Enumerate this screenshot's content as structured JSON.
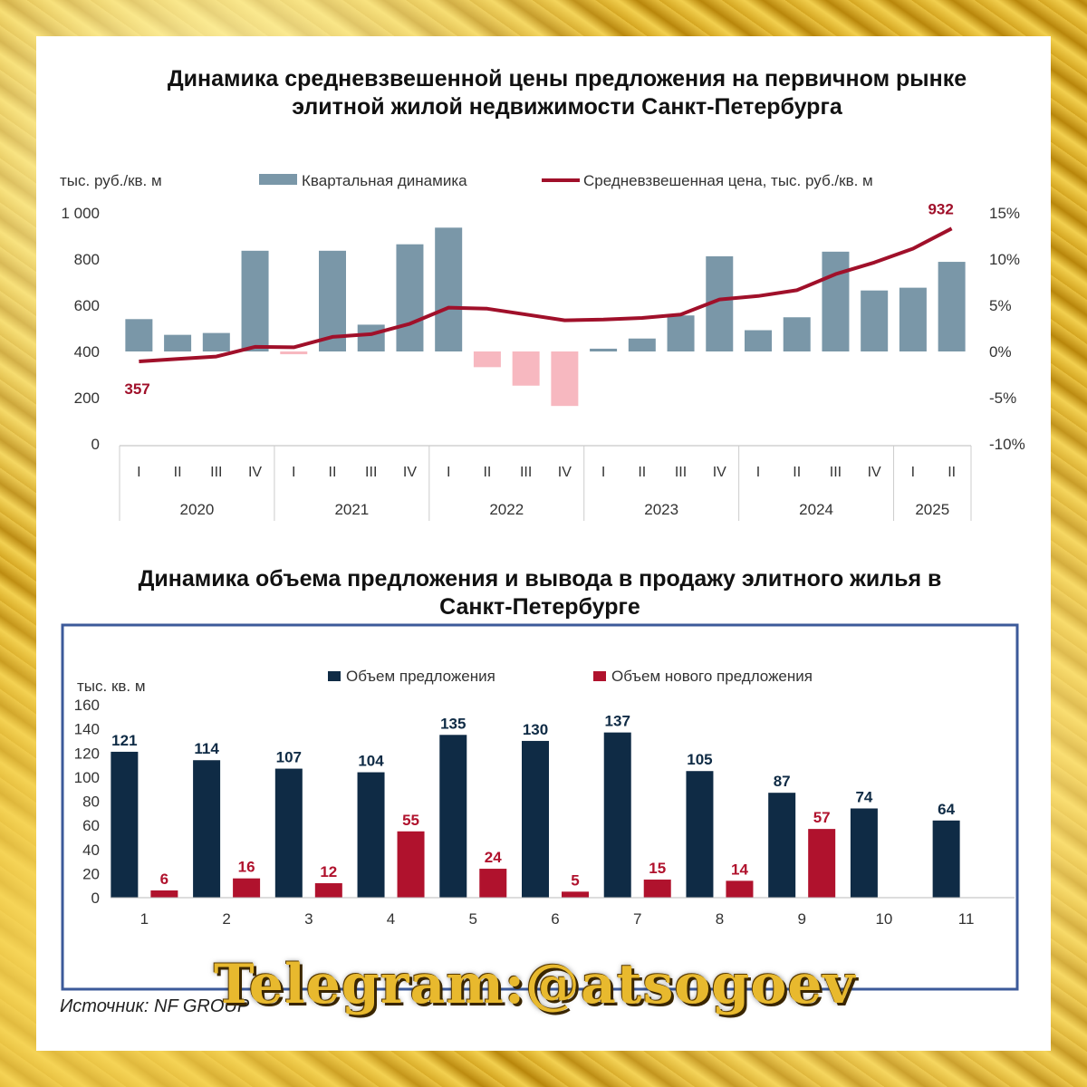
{
  "chart_data": [
    {
      "type": "bar",
      "title": "Динамика средневзвешенной цены предложения на первичном рынке элитной жилой недвижимости Санкт-Петербурга",
      "ylabel": "тыс. руб./кв. м",
      "ylim": [
        0,
        1000
      ],
      "y_ticks": [
        "1 000",
        "800",
        "600",
        "400",
        "200",
        "0"
      ],
      "y2lim": [
        -10,
        15
      ],
      "y2_ticks": [
        "15%",
        "10%",
        "5%",
        "0%",
        "-5%",
        "-10%"
      ],
      "quarters": [
        "I",
        "II",
        "III",
        "IV",
        "I",
        "II",
        "III",
        "IV",
        "I",
        "II",
        "III",
        "IV",
        "I",
        "II",
        "III",
        "IV",
        "I",
        "II",
        "III",
        "IV",
        "I",
        "II"
      ],
      "years": [
        {
          "label": "2020",
          "span": 4
        },
        {
          "label": "2021",
          "span": 4
        },
        {
          "label": "2022",
          "span": 4
        },
        {
          "label": "2023",
          "span": 4
        },
        {
          "label": "2024",
          "span": 4
        },
        {
          "label": "2025",
          "span": 2
        }
      ],
      "series": [
        {
          "name": "Квартальная динамика",
          "kind": "bar",
          "axis": "right",
          "values": [
            3.5,
            1.8,
            2.0,
            10.9,
            -0.3,
            10.9,
            2.9,
            11.6,
            13.4,
            -1.7,
            -3.7,
            -5.9,
            0.3,
            1.4,
            3.9,
            10.3,
            2.3,
            3.7,
            10.8,
            6.6,
            6.9,
            9.7
          ]
        },
        {
          "name": "Средневзвешенная цена, тыс. руб./кв. м",
          "kind": "line",
          "axis": "left",
          "values": [
            357,
            368,
            378,
            420,
            418,
            463,
            475,
            520,
            590,
            585,
            560,
            535,
            538,
            545,
            560,
            625,
            640,
            665,
            735,
            785,
            845,
            932
          ]
        }
      ],
      "point_labels": [
        {
          "index": 0,
          "text": "357"
        },
        {
          "index": 21,
          "text": "932"
        }
      ],
      "colors": {
        "bar_positive": "#7a97a8",
        "bar_negative": "#f7b8c0",
        "line": "#a0102a",
        "label": "#a0102a"
      }
    },
    {
      "type": "bar",
      "title": "Динамика объема предложения и вывода в продажу элитного жилья в Санкт-Петербурге",
      "ylabel": "тыс. кв. м",
      "ylim": [
        0,
        160
      ],
      "y_ticks": [
        "160",
        "140",
        "120",
        "100",
        "80",
        "60",
        "40",
        "20",
        "0"
      ],
      "categories": [
        "1",
        "2",
        "3",
        "4",
        "5",
        "6",
        "7",
        "8",
        "9",
        "10",
        "11"
      ],
      "series": [
        {
          "name": "Объем предложения",
          "values": [
            121,
            114,
            107,
            104,
            135,
            130,
            137,
            105,
            87,
            74,
            64
          ],
          "labels": [
            "121",
            "114",
            "107",
            "104",
            "135",
            "130",
            "137",
            "105",
            "87",
            "74",
            "64"
          ]
        },
        {
          "name": "Объем нового предложения",
          "values": [
            6,
            16,
            12,
            55,
            24,
            5,
            15,
            14,
            57,
            null,
            null
          ],
          "labels": [
            "6",
            "16",
            "12",
            "55",
            "24",
            "5",
            "15",
            "14",
            "57",
            "",
            ""
          ]
        }
      ],
      "colors": {
        "offer": "#0f2b45",
        "new": "#b0122d",
        "frame": "#3c5a9a"
      }
    }
  ],
  "source": "Источник: NF GROUP",
  "watermark": "Telegram:@atsogoev"
}
